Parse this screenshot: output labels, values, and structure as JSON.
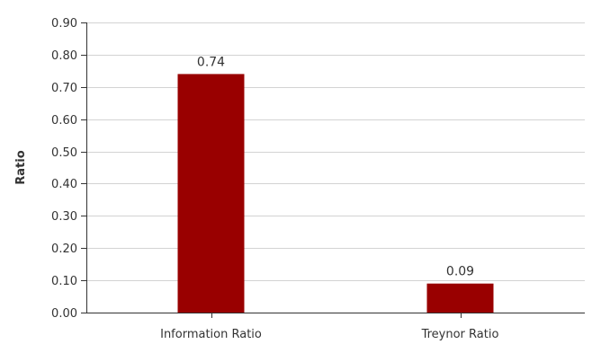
{
  "chart_data": {
    "type": "bar",
    "categories": [
      "Information Ratio",
      "Treynor Ratio"
    ],
    "values": [
      0.74,
      0.09
    ],
    "value_labels": [
      "0.74",
      "0.09"
    ],
    "title": "",
    "xlabel": "",
    "ylabel": "Ratio",
    "ylim": [
      0,
      0.9
    ],
    "yticks": [
      "0.00",
      "0.10",
      "0.20",
      "0.30",
      "0.40",
      "0.50",
      "0.60",
      "0.70",
      "0.80",
      "0.90"
    ],
    "grid": true,
    "legend": "none",
    "colors": {
      "bar": "#990000",
      "grid": "#d3d3d3",
      "axis": "#333333"
    }
  }
}
